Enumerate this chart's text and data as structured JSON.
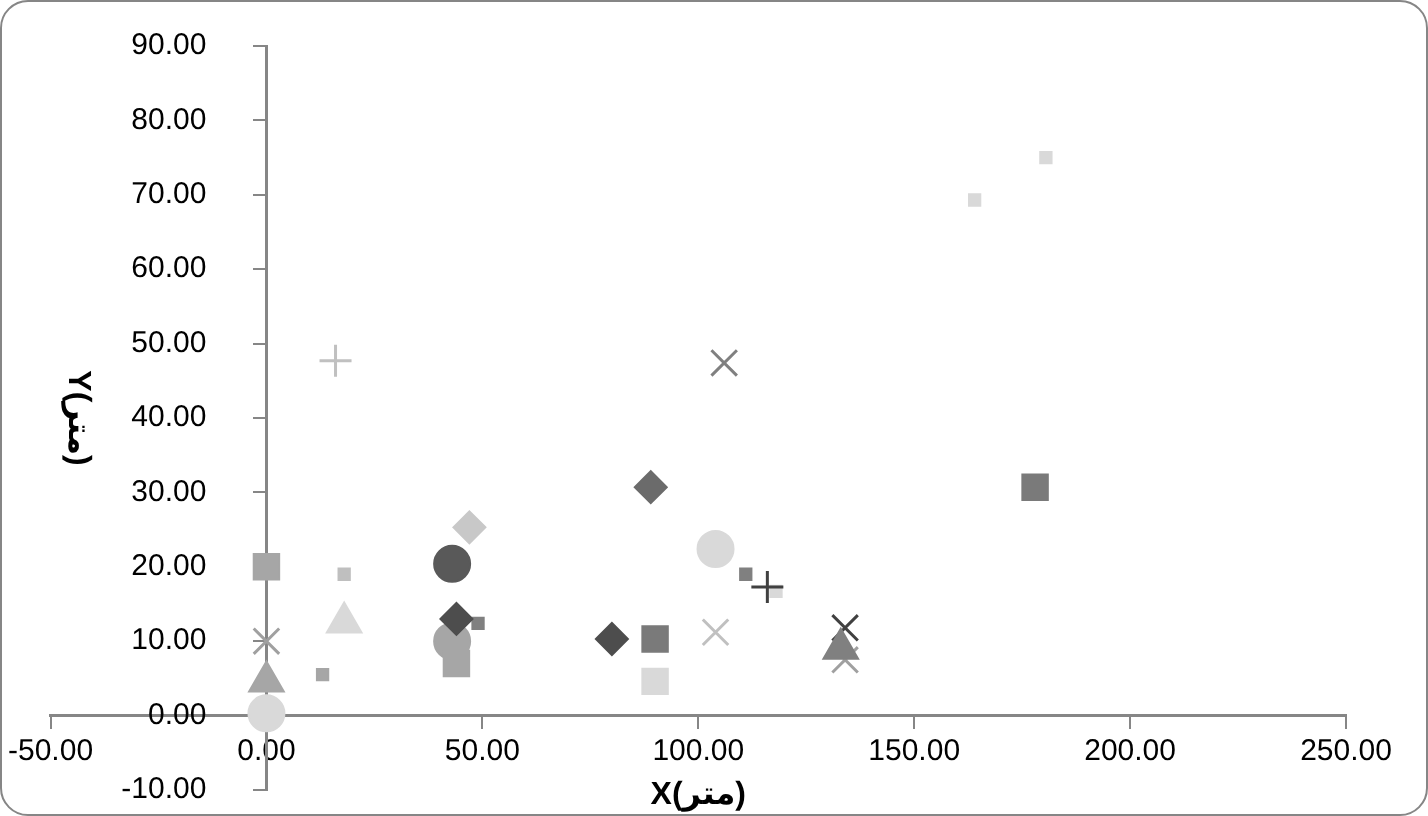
{
  "chart_data": {
    "type": "scatter",
    "xlabel": "X(متر)",
    "ylabel": "Y(متر)",
    "grid": false,
    "legend": false,
    "xlim": [
      -50,
      250
    ],
    "ylim": [
      -10,
      90
    ],
    "xticks": [
      {
        "value": -50,
        "label": "-50.00"
      },
      {
        "value": 0,
        "label": "0.00"
      },
      {
        "value": 50,
        "label": "50.00"
      },
      {
        "value": 100,
        "label": "100.00"
      },
      {
        "value": 150,
        "label": "150.00"
      },
      {
        "value": 200,
        "label": "200.00"
      },
      {
        "value": 250,
        "label": "250.00"
      }
    ],
    "yticks": [
      {
        "value": -10,
        "label": "-10.00"
      },
      {
        "value": 0,
        "label": "0.00"
      },
      {
        "value": 10,
        "label": "10.00"
      },
      {
        "value": 20,
        "label": "20.00"
      },
      {
        "value": 30,
        "label": "30.00"
      },
      {
        "value": 40,
        "label": "40.00"
      },
      {
        "value": 50,
        "label": "50.00"
      },
      {
        "value": 60,
        "label": "60.00"
      },
      {
        "value": 70,
        "label": "70.00"
      },
      {
        "value": 80,
        "label": "80.00"
      },
      {
        "value": 90,
        "label": "90.00"
      }
    ],
    "series": [
      {
        "color": "#4d4d4d",
        "marker": "diamond",
        "x": [
          80,
          44
        ],
        "values": [
          10.3,
          13
        ]
      },
      {
        "color": "#6b6b6b",
        "marker": "diamond",
        "x": [
          89
        ],
        "values": [
          30.7
        ]
      },
      {
        "color": "#c8c8c8",
        "marker": "diamond",
        "x": [
          47
        ],
        "values": [
          25.3
        ]
      },
      {
        "color": "#7a7a7a",
        "marker": "square",
        "x": [
          90,
          178
        ],
        "values": [
          10.3,
          30.7
        ]
      },
      {
        "color": "#a6a6a6",
        "marker": "square",
        "x": [
          0,
          44
        ],
        "values": [
          20,
          7
        ]
      },
      {
        "color": "#d9d9d9",
        "marker": "square",
        "x": [
          90
        ],
        "values": [
          4.6
        ]
      },
      {
        "color": "#a6a6a6",
        "marker": "triangle",
        "x": [
          0
        ],
        "values": [
          4.6
        ]
      },
      {
        "color": "#d9d9d9",
        "marker": "triangle",
        "x": [
          18
        ],
        "values": [
          12.5
        ]
      },
      {
        "color": "#808080",
        "marker": "triangle",
        "x": [
          133
        ],
        "values": [
          9
        ]
      },
      {
        "color": "#a0a0a0",
        "marker": "cross",
        "x": [
          0,
          134
        ],
        "values": [
          10,
          7.5
        ]
      },
      {
        "color": "#c0c0c0",
        "marker": "cross",
        "x": [
          104
        ],
        "values": [
          11.2
        ]
      },
      {
        "color": "#404040",
        "marker": "cross",
        "x": [
          134
        ],
        "values": [
          11.8
        ]
      },
      {
        "color": "#808080",
        "marker": "cross",
        "x": [
          106
        ],
        "values": [
          47.4
        ]
      },
      {
        "color": "#c0c0c0",
        "marker": "plus",
        "x": [
          16
        ],
        "values": [
          47.7
        ]
      },
      {
        "color": "#404040",
        "marker": "plus",
        "x": [
          116
        ],
        "values": [
          17.3
        ]
      },
      {
        "color": "#bfbfbf",
        "marker": "square",
        "x": [
          18
        ],
        "values": [
          19
        ]
      },
      {
        "color": "#808080",
        "marker": "square",
        "x": [
          111,
          49
        ],
        "values": [
          19,
          12.4
        ]
      },
      {
        "color": "#a6a6a6",
        "marker": "square",
        "x": [
          13
        ],
        "values": [
          5.5
        ]
      },
      {
        "color": "#d9d9d9",
        "marker": "square",
        "x": [
          164,
          180.5,
          118
        ],
        "values": [
          69.3,
          75,
          16.7
        ]
      },
      {
        "color": "#595959",
        "marker": "circle",
        "x": [
          43
        ],
        "values": [
          20.4
        ]
      },
      {
        "color": "#a6a6a6",
        "marker": "circle",
        "x": [
          43
        ],
        "values": [
          10
        ]
      },
      {
        "color": "#d9d9d9",
        "marker": "circle",
        "x": [
          104,
          0
        ],
        "values": [
          22.4,
          0.3
        ]
      }
    ]
  }
}
